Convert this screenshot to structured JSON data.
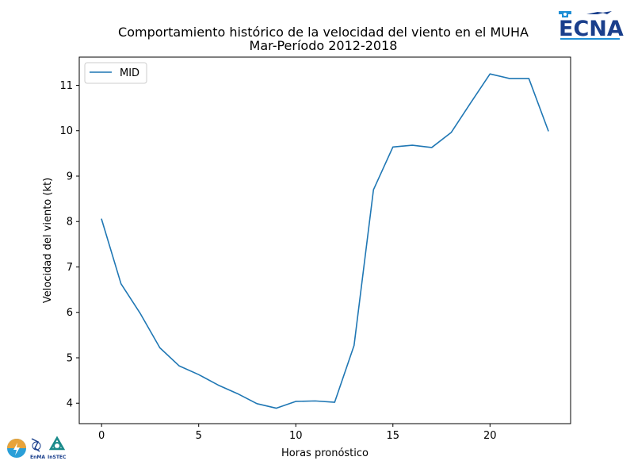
{
  "chart_data": {
    "type": "line",
    "title": "Comportamiento histórico de la velocidad del viento en el MUHA",
    "subtitle": "Mar-Período 2012-2018",
    "xlabel": "Horas pronóstico",
    "ylabel": "Velocidad del viento (kt)",
    "xlim": [
      -1.15,
      24.15
    ],
    "ylim": [
      3.55,
      11.62
    ],
    "xticks": [
      0,
      5,
      10,
      15,
      20
    ],
    "yticks": [
      4,
      5,
      6,
      7,
      8,
      9,
      10,
      11
    ],
    "grid": false,
    "legend_position": "top-left",
    "x": [
      0,
      1,
      2,
      3,
      4,
      5,
      6,
      7,
      8,
      9,
      10,
      11,
      12,
      13,
      14,
      15,
      16,
      17,
      18,
      19,
      20,
      21,
      22,
      23
    ],
    "series": [
      {
        "name": "MID",
        "color": "#1f77b4",
        "values": [
          8.05,
          6.63,
          5.97,
          5.22,
          4.82,
          4.63,
          4.4,
          4.21,
          3.99,
          3.89,
          4.04,
          4.05,
          4.02,
          5.27,
          8.7,
          9.64,
          9.68,
          9.63,
          9.96,
          10.61,
          11.25,
          11.15,
          11.15,
          10.0
        ]
      }
    ]
  },
  "logos": {
    "top_right": "ECNA",
    "bottom_left_1": "EnMA",
    "bottom_left_2": "InSTEC"
  }
}
